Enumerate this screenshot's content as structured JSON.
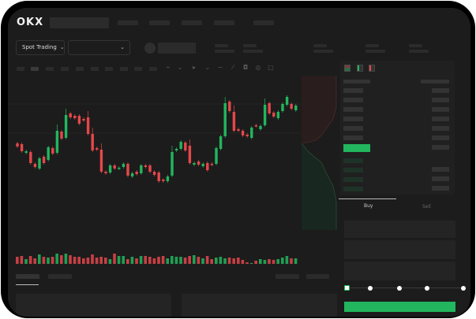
{
  "brand": {
    "logo": "OKX"
  },
  "header": {
    "market_selector": "Spot Trading"
  },
  "orderbook": {
    "view_icons": [
      "orderbook-both-icon",
      "orderbook-bids-icon",
      "orderbook-asks-icon"
    ]
  },
  "trade": {
    "tabs": [
      {
        "label": "Buy",
        "active": true
      },
      {
        "label": "Sell",
        "active": false
      }
    ],
    "slider_percent": 0,
    "submit_color": "#22b65e"
  },
  "colors": {
    "up": "#22b65e",
    "down": "#e5474b",
    "background": "#1c1c1c"
  },
  "chart_data": {
    "type": "candlestick",
    "note_units": "price (no axis printed)",
    "candles": [
      [
        69,
        65
      ],
      [
        68,
        59
      ],
      [
        57,
        59
      ],
      [
        58,
        44
      ],
      [
        43,
        39
      ],
      [
        37,
        50
      ],
      [
        52,
        44
      ],
      [
        48,
        64
      ],
      [
        63,
        56
      ],
      [
        57,
        85
      ],
      [
        84,
        75
      ],
      [
        76,
        105
      ],
      [
        107,
        102
      ],
      [
        104,
        101
      ],
      [
        104,
        94
      ],
      [
        100,
        98
      ],
      [
        102,
        81
      ],
      [
        81,
        60
      ],
      [
        63,
        61
      ],
      [
        61,
        33
      ],
      [
        33,
        31
      ],
      [
        32,
        41
      ],
      [
        41,
        37
      ],
      [
        37,
        38
      ],
      [
        39,
        43
      ],
      [
        43,
        28
      ],
      [
        27,
        31
      ],
      [
        33,
        30
      ],
      [
        31,
        41
      ],
      [
        41,
        39
      ],
      [
        41,
        33
      ],
      [
        33,
        29
      ],
      [
        32,
        21
      ],
      [
        23,
        21
      ],
      [
        21,
        27
      ],
      [
        28,
        58
      ],
      [
        60,
        62
      ],
      [
        62,
        71
      ],
      [
        70,
        60
      ],
      [
        66,
        44
      ],
      [
        42,
        44
      ],
      [
        46,
        42
      ],
      [
        40,
        43
      ],
      [
        44,
        35
      ],
      [
        43,
        42
      ],
      [
        43,
        63
      ],
      [
        62,
        78
      ],
      [
        78,
        120
      ],
      [
        122,
        110
      ],
      [
        109,
        85
      ],
      [
        87,
        85
      ],
      [
        85,
        79
      ],
      [
        80,
        78
      ],
      [
        76,
        89
      ],
      [
        92,
        91
      ],
      [
        87,
        91
      ],
      [
        92,
        118
      ],
      [
        120,
        107
      ],
      [
        108,
        103
      ],
      [
        101,
        109
      ],
      [
        110,
        119
      ],
      [
        118,
        128
      ],
      [
        119,
        113
      ],
      [
        111,
        117
      ]
    ],
    "volume": [
      9,
      10,
      6,
      10,
      7,
      12,
      9,
      8,
      9,
      13,
      11,
      13,
      11,
      9,
      9,
      7,
      8,
      12,
      8,
      9,
      8,
      6,
      13,
      10,
      10,
      6,
      9,
      7,
      10,
      10,
      9,
      7,
      9,
      10,
      7,
      10,
      9,
      9,
      8,
      10,
      11,
      9,
      7,
      10,
      6,
      8,
      9,
      7,
      8,
      7,
      8,
      5,
      2,
      1,
      4,
      6,
      5,
      6,
      5,
      6,
      8,
      10,
      7,
      7
    ]
  }
}
